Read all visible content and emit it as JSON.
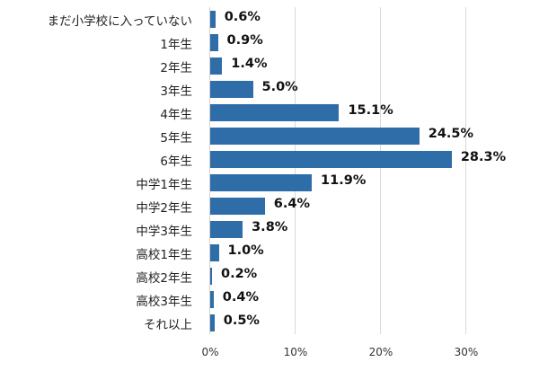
{
  "chart_data": {
    "type": "bar",
    "orientation": "horizontal",
    "title": "",
    "xlabel": "",
    "ylabel": "",
    "xlim": [
      0,
      35
    ],
    "grid": true,
    "bar_color": "#2e6da8",
    "x_ticks": [
      "0%",
      "10%",
      "20%",
      "30%"
    ],
    "x_tick_values": [
      0,
      10,
      20,
      30
    ],
    "categories": [
      "まだ小学校に入っていない",
      "1年生",
      "2年生",
      "3年生",
      "4年生",
      "5年生",
      "6年生",
      "中学1年生",
      "中学2年生",
      "中学3年生",
      "高校1年生",
      "高校2年生",
      "高校3年生",
      "それ以上"
    ],
    "values": [
      0.6,
      0.9,
      1.4,
      5.0,
      15.1,
      24.5,
      28.3,
      11.9,
      6.4,
      3.8,
      1.0,
      0.2,
      0.4,
      0.5
    ],
    "value_labels": [
      "0.6%",
      "0.9%",
      "1.4%",
      "5.0%",
      "15.1%",
      "24.5%",
      "28.3%",
      "11.9%",
      "6.4%",
      "3.8%",
      "1.0%",
      "0.2%",
      "0.4%",
      "0.5%"
    ]
  }
}
